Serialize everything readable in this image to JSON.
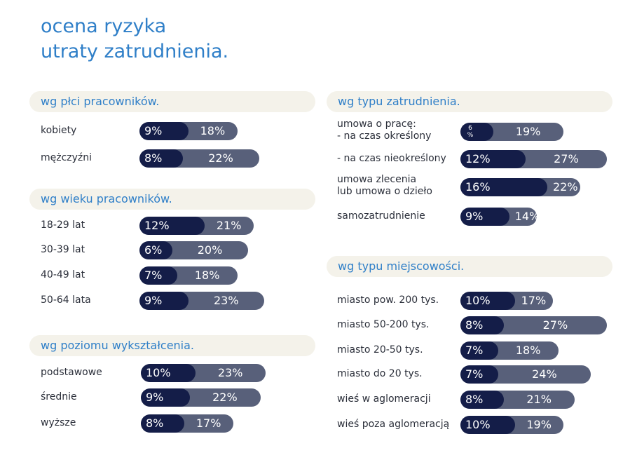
{
  "title": {
    "line1": "ocena ryzyka",
    "line2": "utraty zatrudnienia."
  },
  "colors": {
    "accent": "#2f7fc8",
    "bar_dark": "#141d48",
    "bar_light": "#58607a",
    "header_bg": "#f4f2ea"
  },
  "chart_data": [
    {
      "type": "bar",
      "title": "wg płci pracowników.",
      "categories": [
        "kobiety",
        "mężczyźni"
      ],
      "series": [
        {
          "name": "inner",
          "labels": [
            "9%",
            "8%"
          ],
          "values": [
            9,
            8
          ]
        },
        {
          "name": "outer",
          "labels": [
            "18%",
            "22%"
          ],
          "values": [
            18,
            22
          ]
        }
      ]
    },
    {
      "type": "bar",
      "title": "wg wieku pracowników.",
      "categories": [
        "18-29 lat",
        "30-39 lat",
        "40-49 lat",
        "50-64 lata"
      ],
      "series": [
        {
          "name": "inner",
          "labels": [
            "12%",
            "6%",
            "7%",
            "9%"
          ],
          "values": [
            12,
            6,
            7,
            9
          ]
        },
        {
          "name": "outer",
          "labels": [
            "21%",
            "20%",
            "18%",
            "23%"
          ],
          "values": [
            21,
            20,
            18,
            23
          ]
        }
      ]
    },
    {
      "type": "bar",
      "title": "wg poziomu wykształcenia.",
      "categories": [
        "podstawowe",
        "średnie",
        "wyższe"
      ],
      "series": [
        {
          "name": "inner",
          "labels": [
            "10%",
            "9%",
            "8%"
          ],
          "values": [
            10,
            9,
            8
          ]
        },
        {
          "name": "outer",
          "labels": [
            "23%",
            "22%",
            "17%"
          ],
          "values": [
            23,
            22,
            17
          ]
        }
      ]
    },
    {
      "type": "bar",
      "title": "wg typu zatrudnienia.",
      "categories": [
        "umowa o pracę:\n- na czas określony",
        "- na czas nieokreślony",
        "umowa zlecenia\nlub umowa o dzieło",
        "samozatrudnienie"
      ],
      "series": [
        {
          "name": "inner",
          "labels": [
            "6\n%",
            "12%",
            "16%",
            "9%"
          ],
          "values": [
            6,
            12,
            16,
            9
          ]
        },
        {
          "name": "outer",
          "labels": [
            "19%",
            "27%",
            "22%",
            "14%"
          ],
          "values": [
            19,
            27,
            22,
            14
          ]
        }
      ]
    },
    {
      "type": "bar",
      "title": "wg typu miejscowości.",
      "categories": [
        "miasto pow. 200 tys.",
        "miasto 50-200 tys.",
        "miasto 20-50 tys.",
        "miasto do 20 tys.",
        "wieś w aglomeracji",
        "wieś poza aglomeracją"
      ],
      "series": [
        {
          "name": "inner",
          "labels": [
            "10%",
            "8%",
            "7%",
            "7%",
            "8%",
            "10%"
          ],
          "values": [
            10,
            8,
            7,
            7,
            8,
            10
          ]
        },
        {
          "name": "outer",
          "labels": [
            "17%",
            "27%",
            "18%",
            "24%",
            "21%",
            "19%"
          ],
          "values": [
            17,
            27,
            18,
            24,
            21,
            19
          ]
        }
      ]
    }
  ]
}
